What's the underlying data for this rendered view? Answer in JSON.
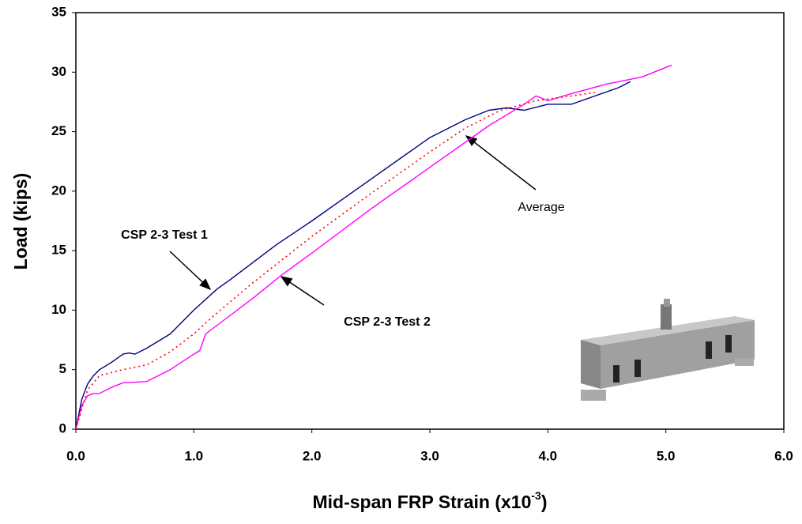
{
  "chart_data": {
    "type": "line",
    "x_label": [
      "Mid-span FRP Strain (x10",
      "-3",
      ")"
    ],
    "y_label": "Load (kips)",
    "xlim": [
      0,
      6
    ],
    "ylim": [
      0,
      35
    ],
    "xticks": [
      {
        "value": 0,
        "label": "0.0"
      },
      {
        "value": 1,
        "label": "1.0"
      },
      {
        "value": 2,
        "label": "2.0"
      },
      {
        "value": 3,
        "label": "3.0"
      },
      {
        "value": 4,
        "label": "4.0"
      },
      {
        "value": 5,
        "label": "5.0"
      },
      {
        "value": 6,
        "label": "6.0"
      }
    ],
    "yticks": [
      0,
      5,
      10,
      15,
      20,
      25,
      30,
      35
    ],
    "grid": false,
    "series": [
      {
        "name": "CSP 2-3 Test 1",
        "color": "#000080",
        "dash": false,
        "x": [
          0,
          0.05,
          0.1,
          0.15,
          0.2,
          0.3,
          0.4,
          0.45,
          0.5,
          0.6,
          0.8,
          1.0,
          1.2,
          1.3,
          1.5,
          1.7,
          2.0,
          2.5,
          3.0,
          3.3,
          3.5,
          3.65,
          3.8,
          4.0,
          4.2,
          4.4,
          4.6,
          4.7
        ],
        "values": [
          0,
          2.5,
          3.8,
          4.5,
          5.0,
          5.6,
          6.3,
          6.4,
          6.3,
          6.8,
          8.0,
          10.0,
          11.8,
          12.5,
          14.0,
          15.5,
          17.5,
          21.0,
          24.5,
          26.0,
          26.8,
          27.0,
          26.8,
          27.3,
          27.3,
          28.0,
          28.7,
          29.2
        ]
      },
      {
        "name": "CSP 2-3 Test 2",
        "color": "#ff00ff",
        "dash": false,
        "x": [
          0,
          0.05,
          0.1,
          0.15,
          0.2,
          0.3,
          0.4,
          0.6,
          0.8,
          1.0,
          1.05,
          1.1,
          1.3,
          1.5,
          1.75,
          2.0,
          2.5,
          3.0,
          3.5,
          3.8,
          3.9,
          4.0,
          4.2,
          4.5,
          4.8,
          5.05
        ],
        "values": [
          0,
          2.0,
          2.8,
          3.0,
          3.0,
          3.5,
          3.9,
          4.0,
          5.0,
          6.3,
          6.6,
          8.0,
          9.5,
          11.0,
          13.0,
          14.8,
          18.5,
          22.0,
          25.5,
          27.3,
          28.0,
          27.6,
          28.2,
          29.0,
          29.6,
          30.6
        ]
      },
      {
        "name": "Average",
        "color": "#ff0000",
        "dash": true,
        "x": [
          0,
          0.1,
          0.2,
          0.4,
          0.6,
          0.8,
          1.0,
          1.2,
          1.5,
          2.0,
          2.5,
          3.0,
          3.3,
          3.6,
          3.9,
          4.2,
          4.4
        ],
        "values": [
          0,
          3.3,
          4.5,
          5.0,
          5.4,
          6.5,
          8.0,
          9.8,
          12.3,
          16.2,
          19.8,
          23.3,
          25.3,
          26.8,
          27.6,
          28.0,
          28.3
        ]
      }
    ],
    "annotations": [
      "CSP 2-3 Test 1",
      "CSP 2-3 Test 2",
      "Average"
    ]
  }
}
